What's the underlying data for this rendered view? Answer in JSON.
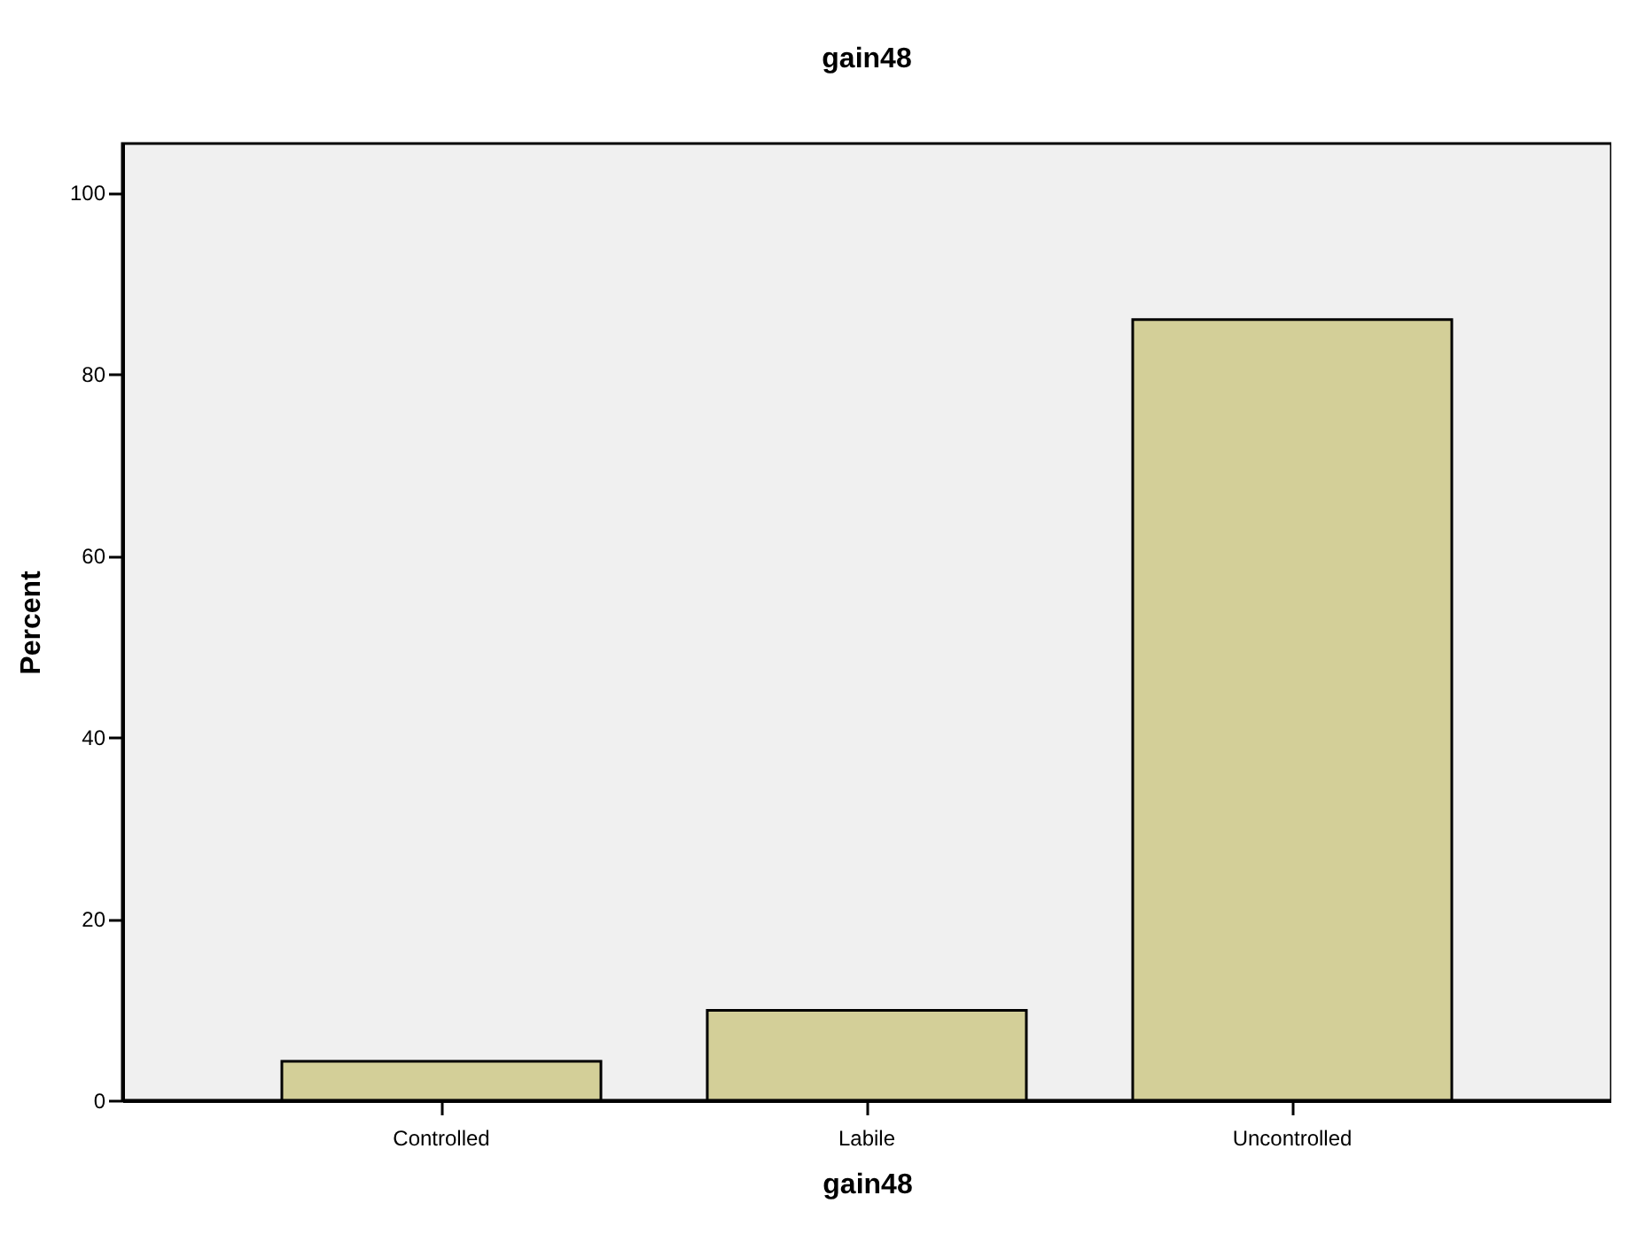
{
  "chart_data": {
    "type": "bar",
    "title": "gain48",
    "xlabel": "gain48",
    "ylabel": "Percent",
    "categories": [
      "Controlled",
      "Labile",
      "Uncontrolled"
    ],
    "values": [
      4.3,
      9.9,
      86.0
    ],
    "color": "#d3cf98",
    "ylim": [
      0,
      105.4
    ],
    "yticks": [
      0,
      20,
      40,
      60,
      80,
      100
    ],
    "grid": false
  }
}
